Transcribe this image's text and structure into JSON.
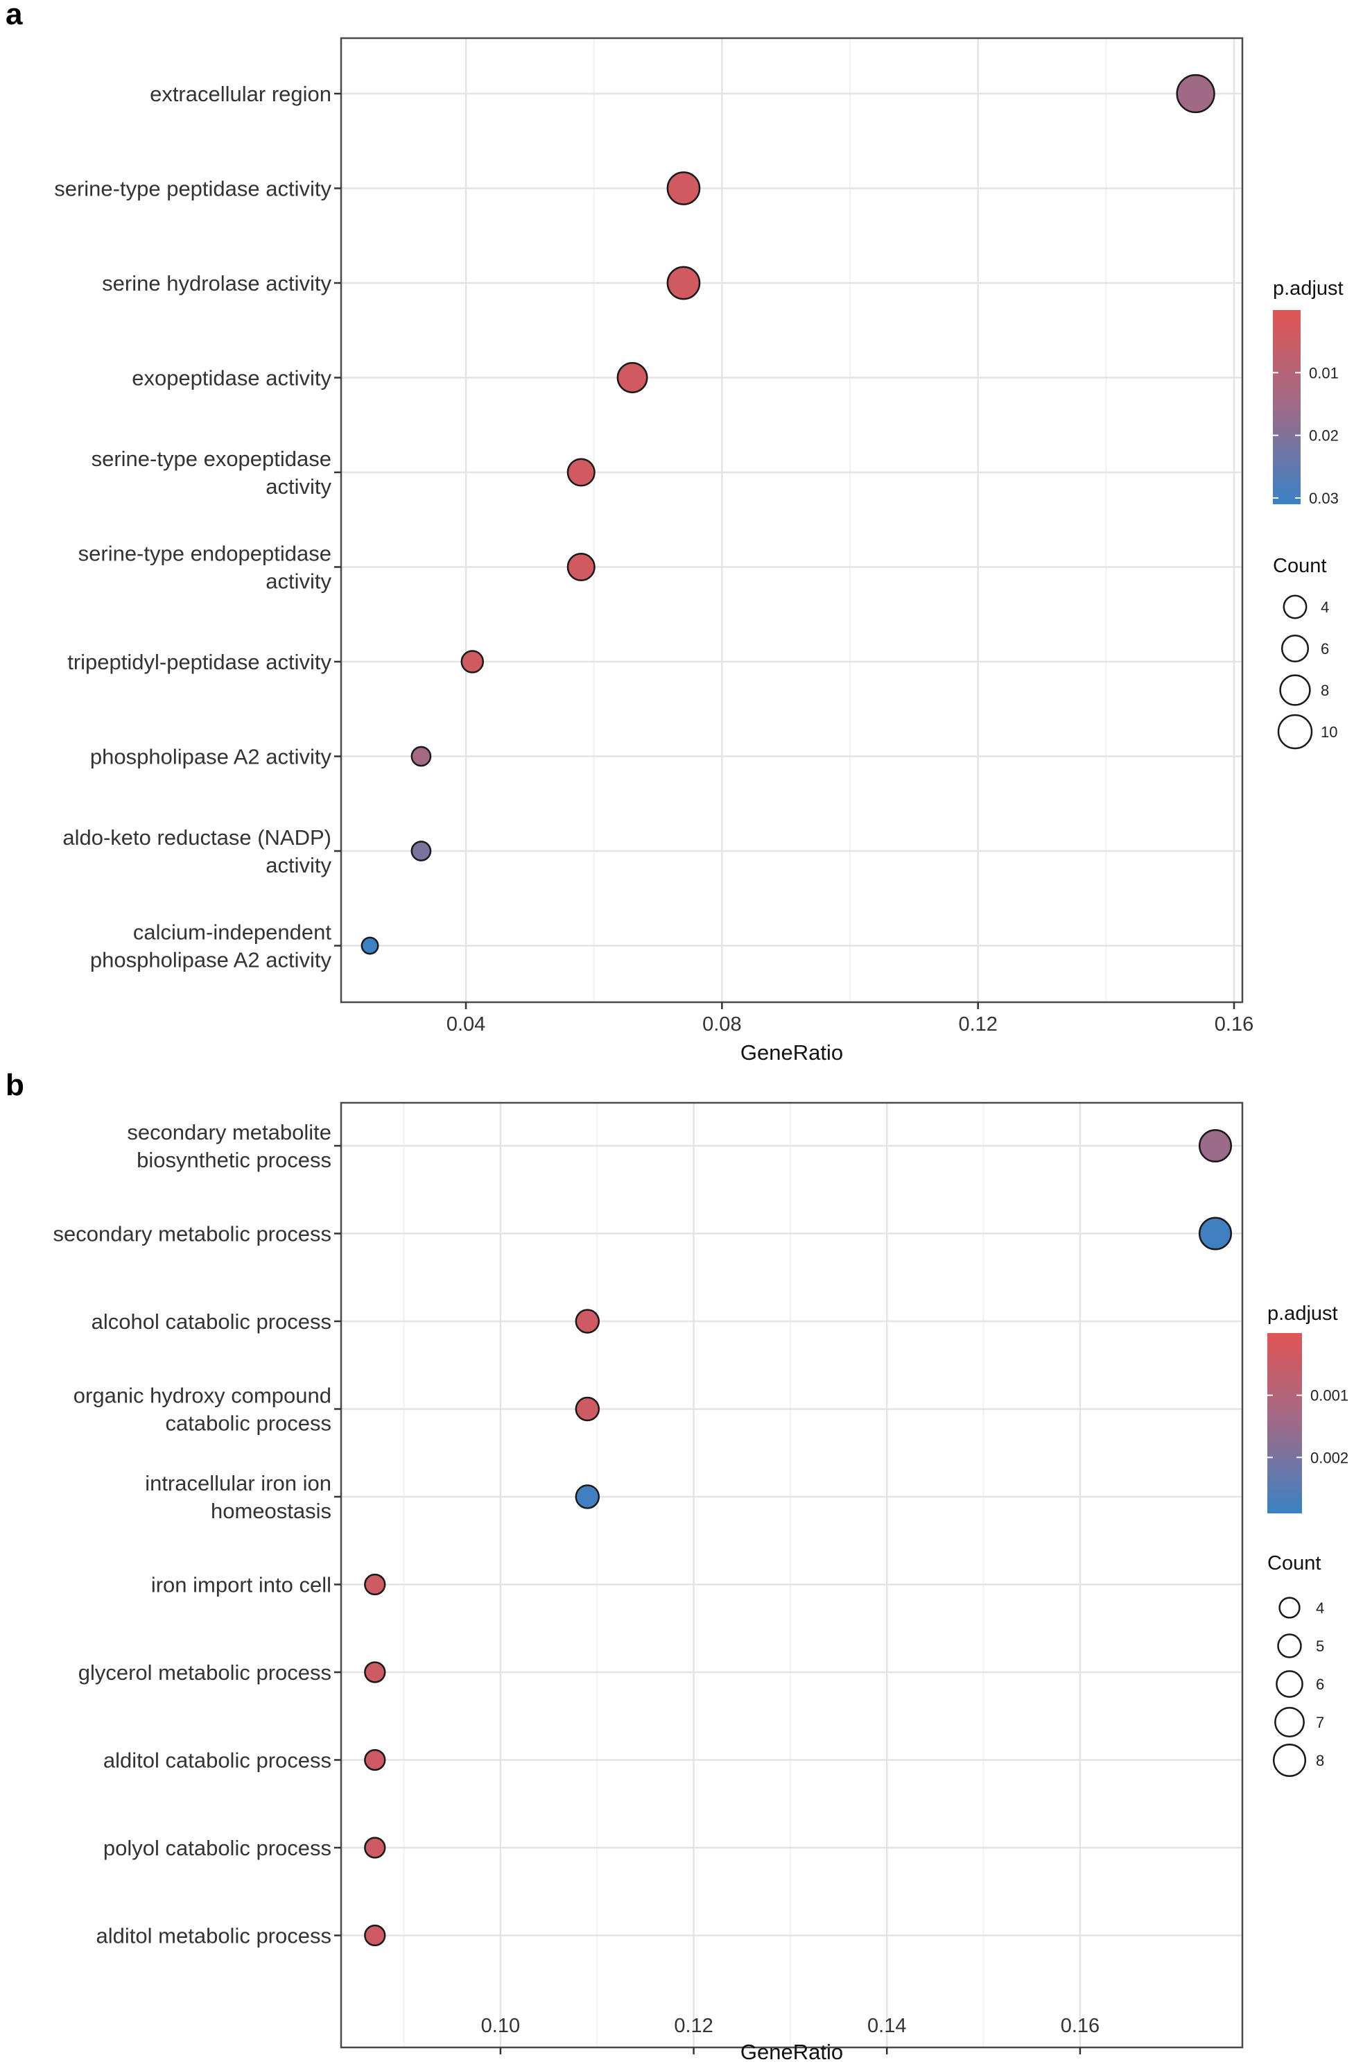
{
  "chart_data": [
    {
      "panel": "a",
      "type": "scatter",
      "xlabel": "GeneRatio",
      "xlim": [
        0.0205,
        0.1613
      ],
      "xticks": [
        0.04,
        0.08,
        0.12,
        0.16
      ],
      "xtick_labels": [
        "0.04",
        "0.08",
        "0.12",
        "0.16"
      ],
      "categories": [
        [
          "extracellular region"
        ],
        [
          "serine-type peptidase activity"
        ],
        [
          "serine hydrolase activity"
        ],
        [
          "exopeptidase activity"
        ],
        [
          "serine-type exopeptidase",
          "activity"
        ],
        [
          "serine-type endopeptidase",
          "activity"
        ],
        [
          "tripeptidyl-peptidase activity"
        ],
        [
          "phospholipase A2 activity"
        ],
        [
          "aldo-keto reductase (NADP)",
          "activity"
        ],
        [
          "calcium-independent",
          "phospholipase A2 activity"
        ]
      ],
      "gene_ratio": [
        0.154,
        0.074,
        0.074,
        0.066,
        0.058,
        0.058,
        0.041,
        0.033,
        0.033,
        0.025
      ],
      "count": [
        11,
        9,
        9,
        8,
        7,
        7,
        5,
        4,
        4,
        3
      ],
      "p_adjust": [
        0.015,
        0.0035,
        0.0035,
        0.0035,
        0.0035,
        0.0035,
        0.0035,
        0.014,
        0.021,
        0.031
      ],
      "legend": {
        "color_title": "p.adjust",
        "color_range": [
          0.0,
          0.031
        ],
        "color_ticks": [
          0.01,
          0.02,
          0.03
        ],
        "color_tick_labels": [
          "0.01",
          "0.02",
          "0.03"
        ],
        "color_low": "#e05555",
        "color_mid": "#9e6b88",
        "color_high": "#3a82c4",
        "size_title": "Count",
        "size_values": [
          4,
          6,
          8,
          10
        ],
        "size_labels": [
          "4",
          "6",
          "8",
          "10"
        ]
      }
    },
    {
      "panel": "b",
      "type": "scatter",
      "xlabel": "GeneRatio",
      "xlim": [
        0.0835,
        0.1768
      ],
      "xticks": [
        0.1,
        0.12,
        0.14,
        0.16
      ],
      "xtick_labels": [
        "0.10",
        "0.12",
        "0.14",
        "0.16"
      ],
      "categories": [
        [
          "secondary metabolite",
          "biosynthetic process"
        ],
        [
          "secondary metabolic process"
        ],
        [
          "alcohol catabolic process"
        ],
        [
          "organic hydroxy compound",
          "catabolic process"
        ],
        [
          "intracellular iron ion",
          "homeostasis"
        ],
        [
          "iron import into cell"
        ],
        [
          "glycerol metabolic process"
        ],
        [
          "alditol catabolic process"
        ],
        [
          "polyol catabolic process"
        ],
        [
          "alditol metabolic process"
        ]
      ],
      "gene_ratio": [
        0.174,
        0.174,
        0.109,
        0.109,
        0.109,
        0.087,
        0.087,
        0.087,
        0.087,
        0.087
      ],
      "count": [
        8,
        8,
        5,
        5,
        5,
        4,
        4,
        4,
        4,
        4
      ],
      "p_adjust": [
        0.0015,
        0.0028,
        0.0004,
        0.0004,
        0.0028,
        0.0004,
        0.0004,
        0.0004,
        0.0004,
        0.0004
      ],
      "legend": {
        "color_title": "p.adjust",
        "color_range": [
          0.0,
          0.0029
        ],
        "color_ticks": [
          0.001,
          0.002
        ],
        "color_tick_labels": [
          "0.001",
          "0.002"
        ],
        "color_low": "#e05555",
        "color_mid": "#9e6b88",
        "color_high": "#3a82c4",
        "size_title": "Count",
        "size_values": [
          4,
          5,
          6,
          7,
          8
        ],
        "size_labels": [
          "4",
          "5",
          "6",
          "7",
          "8"
        ]
      }
    }
  ],
  "panels": {
    "a": "a",
    "b": "b"
  }
}
